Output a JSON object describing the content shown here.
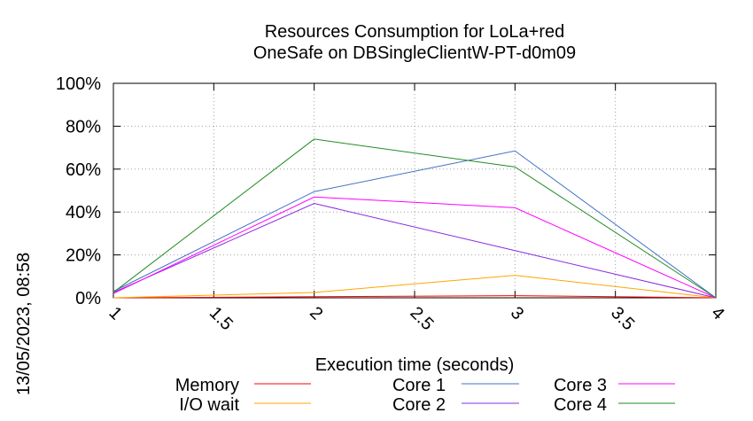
{
  "chart_data": {
    "type": "line",
    "title": "Resources Consumption for LoLa+red",
    "subtitle": "OneSafe on DBSingleClientW-PT-d0m09",
    "xlabel": "Execution time (seconds)",
    "ylabel": "",
    "xlim": [
      1,
      4
    ],
    "ylim": [
      0,
      100
    ],
    "x_ticks": [
      "1",
      "1.5",
      "2",
      "2.5",
      "3",
      "3.5",
      "4"
    ],
    "y_ticks": [
      "0%",
      "20%",
      "40%",
      "60%",
      "80%",
      "100%"
    ],
    "grid": true,
    "legend_position": "bottom",
    "x": [
      1,
      2,
      3,
      4
    ],
    "series": [
      {
        "name": "Memory",
        "color": "#ff0000",
        "values": [
          0,
          0.5,
          1,
          0
        ]
      },
      {
        "name": "I/O wait",
        "color": "#ffa500",
        "values": [
          0,
          2.5,
          10.5,
          0
        ]
      },
      {
        "name": "Core 1",
        "color": "#4472c4",
        "values": [
          3,
          49.5,
          68.5,
          0
        ]
      },
      {
        "name": "Core 2",
        "color": "#8a2be2",
        "values": [
          2.5,
          44,
          22,
          0
        ]
      },
      {
        "name": "Core 3",
        "color": "#ff00ff",
        "values": [
          2,
          47,
          42,
          0
        ]
      },
      {
        "name": "Core 4",
        "color": "#228b22",
        "values": [
          2.5,
          74,
          61,
          0
        ]
      }
    ]
  },
  "timestamp": "13/05/2023, 08:58"
}
